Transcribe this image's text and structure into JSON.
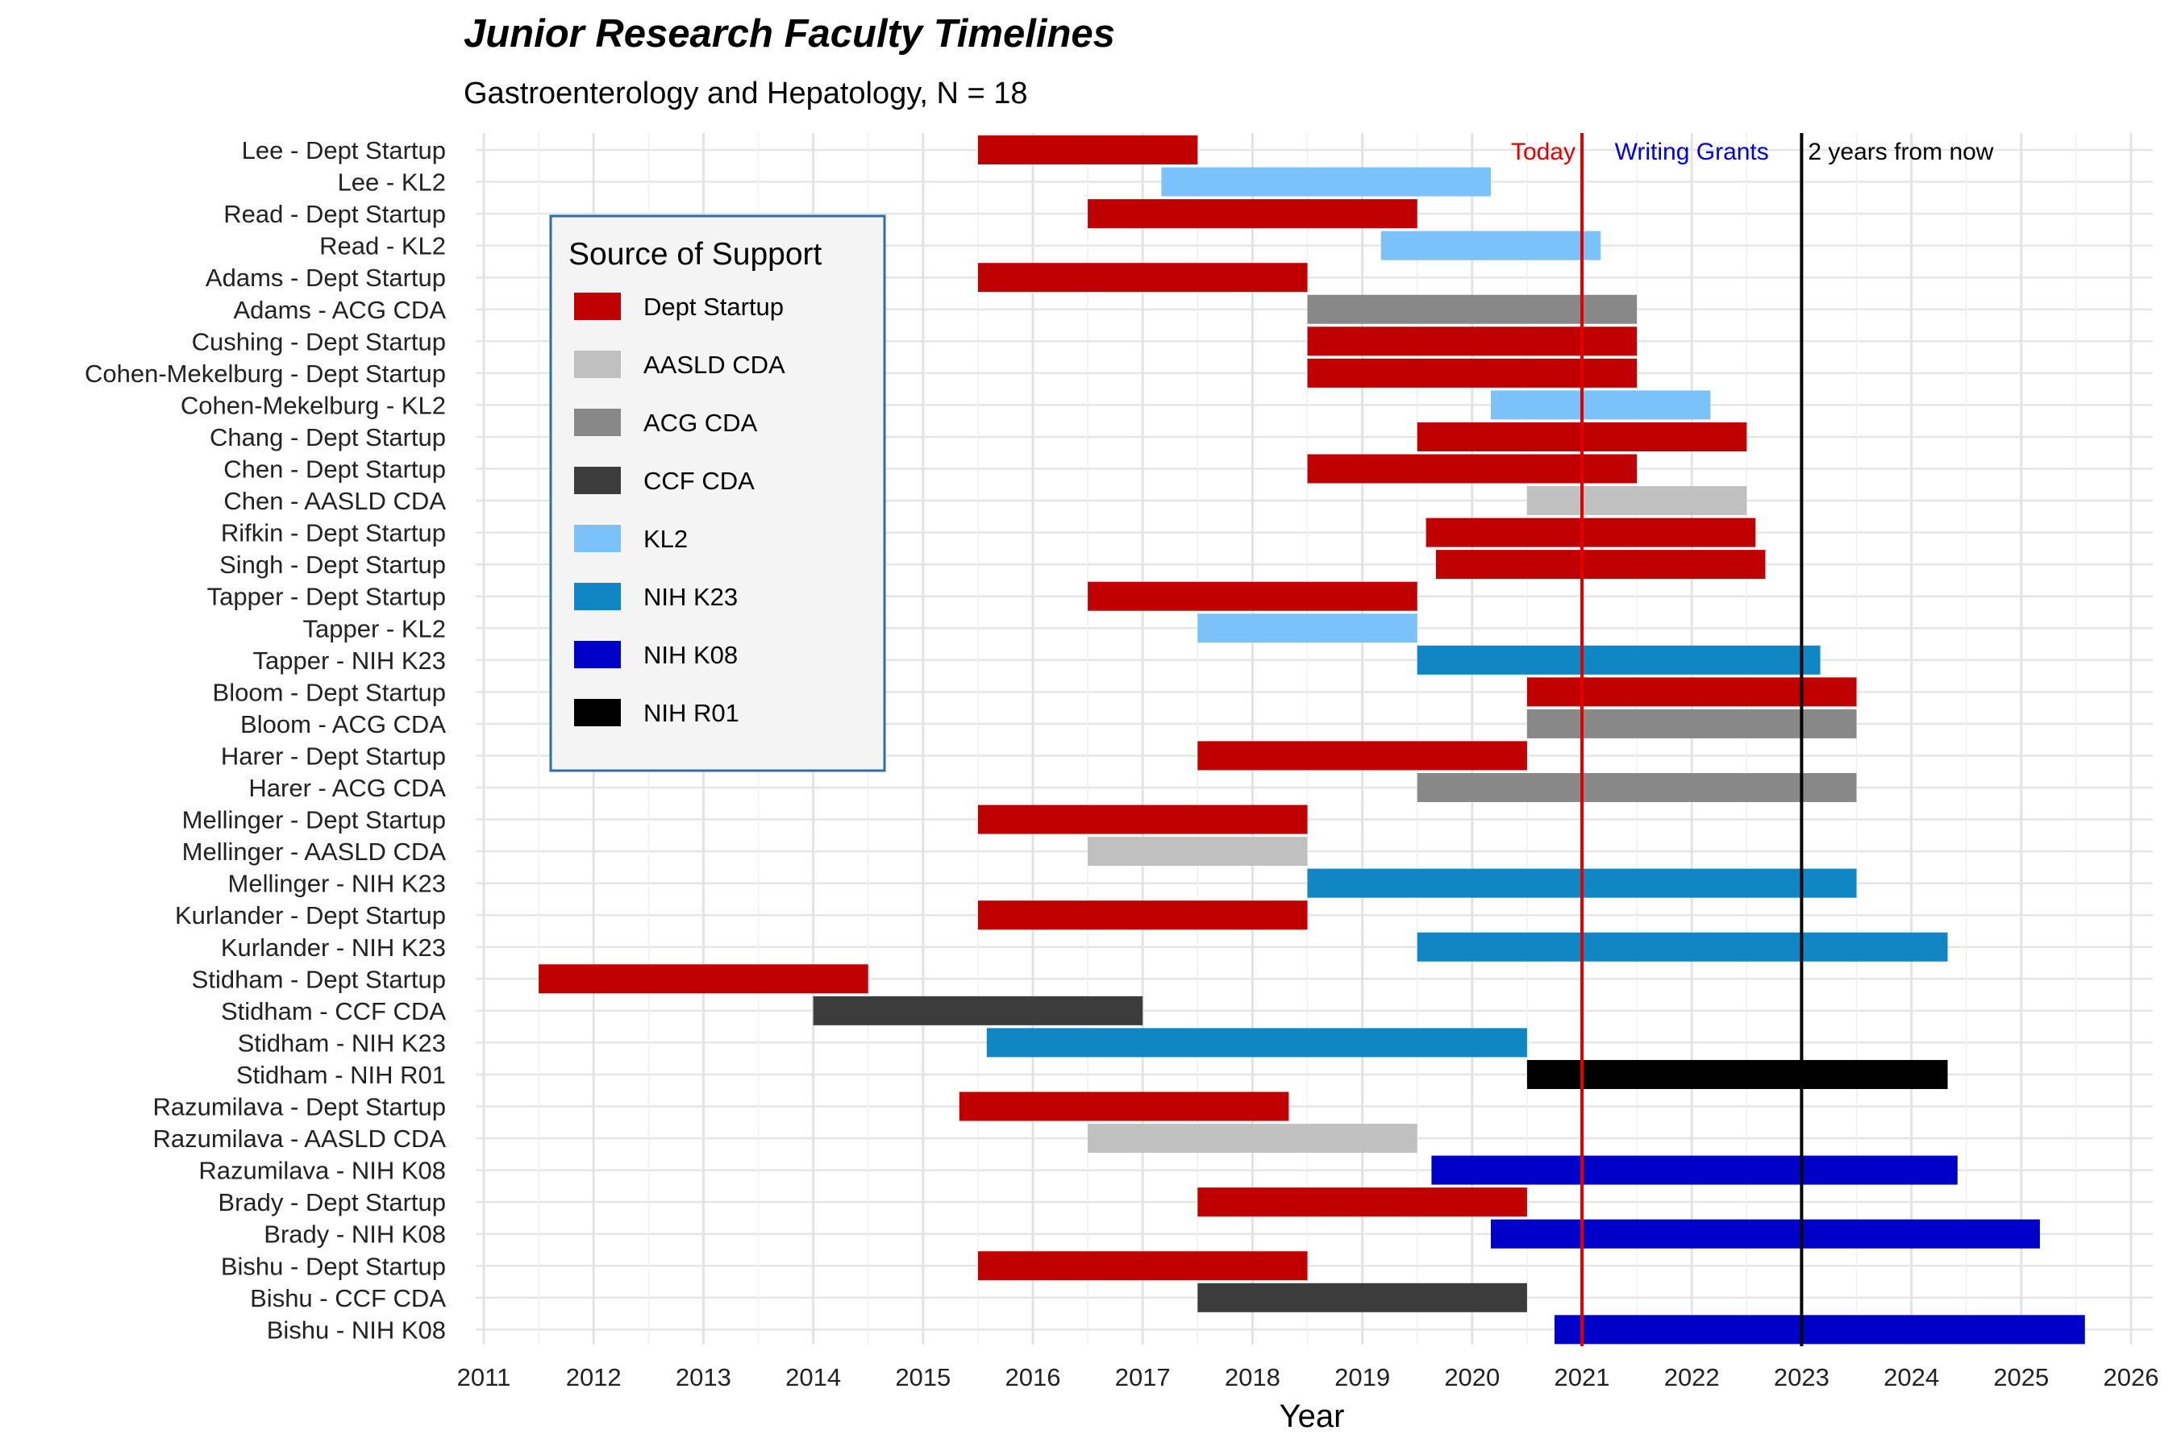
{
  "chart_data": {
    "type": "bar",
    "orientation": "horizontal-range",
    "title": "Junior Research Faculty Timelines",
    "subtitle": "Gastroenterology and Hepatology, N = 18",
    "xlabel": "Year",
    "ylabel": "",
    "xlim": [
      2011,
      2026
    ],
    "x_ticks": [
      "2011",
      "2012",
      "2013",
      "2014",
      "2015",
      "2016",
      "2017",
      "2018",
      "2019",
      "2020",
      "2021",
      "2022",
      "2023",
      "2024",
      "2025",
      "2026"
    ],
    "grid": true,
    "legend": {
      "title": "Source of Support",
      "placement": "top-left inside",
      "entries": [
        {
          "name": "Dept Startup",
          "color": "#C00000"
        },
        {
          "name": "AASLD CDA",
          "color": "#C0C0C0"
        },
        {
          "name": "ACG CDA",
          "color": "#888888"
        },
        {
          "name": "CCF CDA",
          "color": "#3C3C3C"
        },
        {
          "name": "KL2",
          "color": "#7BC2FA"
        },
        {
          "name": "NIH K23",
          "color": "#1186C4"
        },
        {
          "name": "NIH K08",
          "color": "#0000C8"
        },
        {
          "name": "NIH R01",
          "color": "#000000"
        }
      ]
    },
    "rows": [
      {
        "label": "Lee - Dept Startup",
        "source": "Dept Startup",
        "start": 2015.5,
        "end": 2017.5
      },
      {
        "label": "Lee - KL2",
        "source": "KL2",
        "start": 2017.17,
        "end": 2020.17
      },
      {
        "label": "Read - Dept Startup",
        "source": "Dept Startup",
        "start": 2016.5,
        "end": 2019.5
      },
      {
        "label": "Read - KL2",
        "source": "KL2",
        "start": 2019.17,
        "end": 2021.17
      },
      {
        "label": "Adams - Dept Startup",
        "source": "Dept Startup",
        "start": 2015.5,
        "end": 2018.5
      },
      {
        "label": "Adams - ACG CDA",
        "source": "ACG CDA",
        "start": 2018.5,
        "end": 2021.5
      },
      {
        "label": "Cushing - Dept Startup",
        "source": "Dept Startup",
        "start": 2018.5,
        "end": 2021.5
      },
      {
        "label": "Cohen-Mekelburg - Dept Startup",
        "source": "Dept Startup",
        "start": 2018.5,
        "end": 2021.5
      },
      {
        "label": "Cohen-Mekelburg - KL2",
        "source": "KL2",
        "start": 2020.17,
        "end": 2022.17
      },
      {
        "label": "Chang - Dept Startup",
        "source": "Dept Startup",
        "start": 2019.5,
        "end": 2022.5
      },
      {
        "label": "Chen - Dept Startup",
        "source": "Dept Startup",
        "start": 2018.5,
        "end": 2021.5
      },
      {
        "label": "Chen - AASLD CDA",
        "source": "AASLD CDA",
        "start": 2020.5,
        "end": 2022.5
      },
      {
        "label": "Rifkin - Dept Startup",
        "source": "Dept Startup",
        "start": 2019.58,
        "end": 2022.58
      },
      {
        "label": "Singh - Dept Startup",
        "source": "Dept Startup",
        "start": 2019.67,
        "end": 2022.67
      },
      {
        "label": "Tapper - Dept Startup",
        "source": "Dept Startup",
        "start": 2016.5,
        "end": 2019.5
      },
      {
        "label": "Tapper - KL2",
        "source": "KL2",
        "start": 2017.5,
        "end": 2019.5
      },
      {
        "label": "Tapper - NIH K23",
        "source": "NIH K23",
        "start": 2019.5,
        "end": 2023.17
      },
      {
        "label": "Bloom - Dept Startup",
        "source": "Dept Startup",
        "start": 2020.5,
        "end": 2023.5
      },
      {
        "label": "Bloom - ACG CDA",
        "source": "ACG CDA",
        "start": 2020.5,
        "end": 2023.5
      },
      {
        "label": "Harer - Dept Startup",
        "source": "Dept Startup",
        "start": 2017.5,
        "end": 2020.5
      },
      {
        "label": "Harer - ACG CDA",
        "source": "ACG CDA",
        "start": 2019.5,
        "end": 2023.5
      },
      {
        "label": "Mellinger - Dept Startup",
        "source": "Dept Startup",
        "start": 2015.5,
        "end": 2018.5
      },
      {
        "label": "Mellinger - AASLD CDA",
        "source": "AASLD CDA",
        "start": 2016.5,
        "end": 2018.5
      },
      {
        "label": "Mellinger - NIH K23",
        "source": "NIH K23",
        "start": 2018.5,
        "end": 2023.5
      },
      {
        "label": "Kurlander - Dept Startup",
        "source": "Dept Startup",
        "start": 2015.5,
        "end": 2018.5
      },
      {
        "label": "Kurlander - NIH K23",
        "source": "NIH K23",
        "start": 2019.5,
        "end": 2024.33
      },
      {
        "label": "Stidham - Dept Startup",
        "source": "Dept Startup",
        "start": 2011.5,
        "end": 2014.5
      },
      {
        "label": "Stidham - CCF CDA",
        "source": "CCF CDA",
        "start": 2014.0,
        "end": 2017.0
      },
      {
        "label": "Stidham - NIH K23",
        "source": "NIH K23",
        "start": 2015.58,
        "end": 2020.5
      },
      {
        "label": "Stidham - NIH R01",
        "source": "NIH R01",
        "start": 2020.5,
        "end": 2024.33
      },
      {
        "label": "Razumilava - Dept Startup",
        "source": "Dept Startup",
        "start": 2015.33,
        "end": 2018.33
      },
      {
        "label": "Razumilava - AASLD CDA",
        "source": "AASLD CDA",
        "start": 2016.5,
        "end": 2019.5
      },
      {
        "label": "Razumilava - NIH K08",
        "source": "NIH K08",
        "start": 2019.63,
        "end": 2024.42
      },
      {
        "label": "Brady - Dept Startup",
        "source": "Dept Startup",
        "start": 2017.5,
        "end": 2020.5
      },
      {
        "label": "Brady - NIH K08",
        "source": "NIH K08",
        "start": 2020.17,
        "end": 2025.17
      },
      {
        "label": "Bishu - Dept Startup",
        "source": "Dept Startup",
        "start": 2015.5,
        "end": 2018.5
      },
      {
        "label": "Bishu - CCF CDA",
        "source": "CCF CDA",
        "start": 2017.5,
        "end": 2020.5
      },
      {
        "label": "Bishu - NIH K08",
        "source": "NIH K08",
        "start": 2020.75,
        "end": 2025.58
      }
    ],
    "reference_lines": [
      {
        "label": "Today",
        "x": 2021.0,
        "color": "#E00000"
      },
      {
        "label": "Writing Grants",
        "x": null,
        "color": "#0000E0"
      },
      {
        "label": "2 years from now",
        "x": 2023.0,
        "color": "#000000"
      }
    ]
  }
}
